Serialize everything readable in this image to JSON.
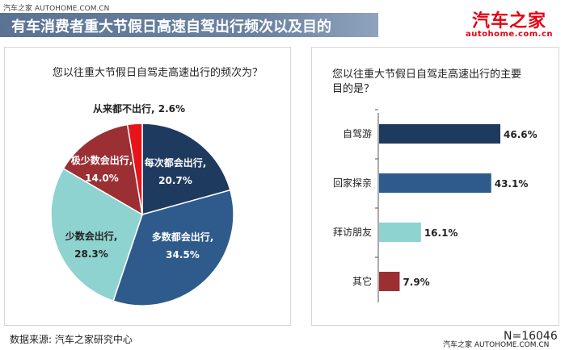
{
  "watermark_top": "汽车之家 AUTOHOME.COM.CN",
  "title": "有车消费者重大节假日高速自驾出行频次以及目的",
  "logo": {
    "main": "汽车之家",
    "sub": "autohome.com.cn"
  },
  "source": "数据来源: 汽车之家研究中心",
  "sample": "N=16046",
  "watermark_bottom": "汽车之家 AUTOHOME.COM.CN",
  "chart_data": [
    {
      "type": "pie",
      "title": "您以往重大节假日自驾走高速出行的频次为？",
      "labels": [
        "每次都会出行",
        "多数都会出行",
        "少数会出行",
        "极少数会出行",
        "从来都不出行"
      ],
      "values": [
        20.7,
        34.5,
        28.3,
        14.0,
        2.6
      ],
      "value_labels": [
        "20.7%",
        "34.5%",
        "28.3%",
        "14.0%",
        "2.6%"
      ],
      "colors": [
        "#1f3a5f",
        "#2e5b8c",
        "#8ed3cf",
        "#9b2f33",
        "#e8141a"
      ]
    },
    {
      "type": "bar",
      "orientation": "horizontal",
      "title": "您以往重大节假日自驾走高速出行的主要目的是？",
      "categories": [
        "自驾游",
        "回家探亲",
        "拜访朋友",
        "其它"
      ],
      "values": [
        46.6,
        43.1,
        16.1,
        7.9
      ],
      "value_labels": [
        "46.6%",
        "43.1%",
        "16.1%",
        "7.9%"
      ],
      "colors": [
        "#1f3a5f",
        "#2e5b8c",
        "#8ed3cf",
        "#9b2f33"
      ]
    }
  ]
}
